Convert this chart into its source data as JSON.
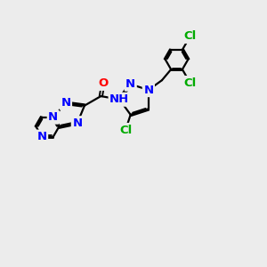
{
  "bg_color": "#ececec",
  "bond_color": "#000000",
  "N_color": "#0000ff",
  "O_color": "#ff0000",
  "Cl_color": "#00aa00",
  "bond_width": 1.6,
  "font_size": 9.5,
  "figsize": [
    3.0,
    3.0
  ],
  "dpi": 100,
  "xlim": [
    0,
    10
  ],
  "ylim": [
    0,
    10
  ]
}
